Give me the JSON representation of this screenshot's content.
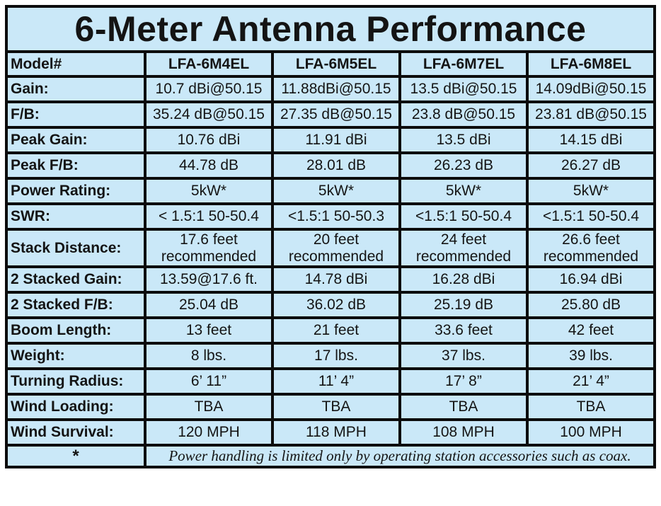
{
  "title": "6-Meter Antenna Performance",
  "colors": {
    "cell_background": "#cae8f8",
    "border": "#0c0c0c",
    "title_red": "#ec1c24",
    "text": "#141414",
    "page_background": "#ffffff"
  },
  "table": {
    "header": [
      "Model#",
      "LFA-6M4EL",
      "LFA-6M5EL",
      "LFA-6M7EL",
      "LFA-6M8EL"
    ],
    "rows": [
      {
        "label": "Gain:",
        "values": [
          "10.7 dBi@50.15",
          "11.88dBi@50.15",
          "13.5 dBi@50.15",
          "14.09dBi@50.15"
        ]
      },
      {
        "label": "F/B:",
        "values": [
          "35.24 dB@50.15",
          "27.35 dB@50.15",
          "23.8 dB@50.15",
          "23.81 dB@50.15"
        ]
      },
      {
        "label": "Peak Gain:",
        "values": [
          "10.76 dBi",
          "11.91 dBi",
          "13.5 dBi",
          "14.15 dBi"
        ]
      },
      {
        "label": "Peak F/B:",
        "values": [
          "44.78 dB",
          "28.01 dB",
          "26.23 dB",
          "26.27 dB"
        ]
      },
      {
        "label": "Power Rating:",
        "values": [
          "5kW*",
          "5kW*",
          "5kW*",
          "5kW*"
        ]
      },
      {
        "label": "SWR:",
        "values": [
          "< 1.5:1 50-50.4",
          "<1.5:1 50-50.3",
          "<1.5:1 50-50.4",
          "<1.5:1 50-50.4"
        ]
      },
      {
        "label": "Stack Distance:",
        "values": [
          "17.6 feet recommended",
          "20 feet recommended",
          "24 feet recommended",
          "26.6 feet recommended"
        ]
      },
      {
        "label": "2 Stacked Gain:",
        "values": [
          "13.59@17.6 ft.",
          "14.78 dBi",
          "16.28 dBi",
          "16.94 dBi"
        ]
      },
      {
        "label": "2 Stacked F/B:",
        "values": [
          "25.04 dB",
          "36.02 dB",
          "25.19 dB",
          "25.80 dB"
        ]
      },
      {
        "label": "Boom Length:",
        "values": [
          "13 feet",
          "21 feet",
          "33.6 feet",
          "42 feet"
        ]
      },
      {
        "label": "Weight:",
        "values": [
          "8 lbs.",
          "17 lbs.",
          "37 lbs.",
          "39 lbs."
        ]
      },
      {
        "label": "Turning Radius:",
        "values": [
          "6’ 11”",
          "11’ 4”",
          "17’ 8”",
          "21’ 4”"
        ]
      },
      {
        "label": "Wind Loading:",
        "values": [
          "TBA",
          "TBA",
          "TBA",
          "TBA"
        ]
      },
      {
        "label": "Wind Survival:",
        "values": [
          "120 MPH",
          "118 MPH",
          "108 MPH",
          "100 MPH"
        ]
      }
    ],
    "footnote": {
      "marker": "*",
      "text": "Power handling is limited only by operating station accessories such as coax."
    }
  }
}
